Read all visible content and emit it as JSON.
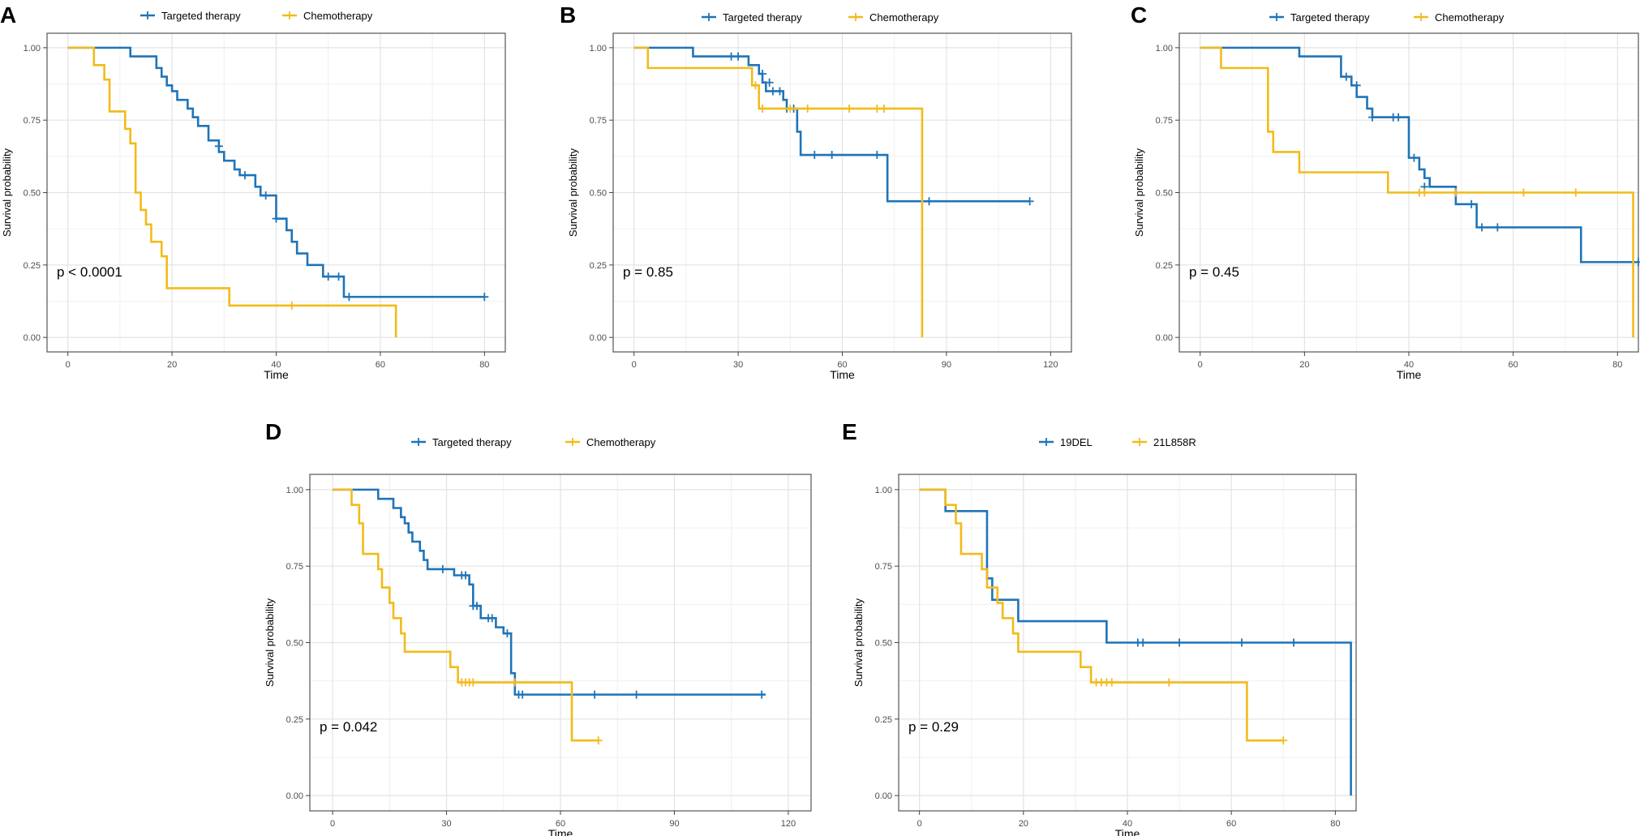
{
  "figure": {
    "axis_label_y": "Survival probability",
    "axis_label_x": "Time"
  },
  "chart_data": [
    {
      "panel": "A",
      "type": "line",
      "subtype": "kaplan-meier",
      "xlabel": "Time",
      "ylabel": "Survival probability",
      "xlim": [
        -4,
        84
      ],
      "ylim": [
        -0.05,
        1.05
      ],
      "xticks": [
        0,
        20,
        40,
        60,
        80
      ],
      "yticks": [
        0,
        0.25,
        0.5,
        0.75,
        1.0
      ],
      "ytick_labels": [
        "0.00",
        "0.25",
        "0.50",
        "0.75",
        "1.00"
      ],
      "annotation": "p < 0.0001",
      "legend": [
        "Targeted therapy",
        "Chemotherapy"
      ],
      "series": [
        {
          "name": "Targeted therapy",
          "color": "#1f74b8",
          "steps": [
            [
              0,
              1.0
            ],
            [
              12,
              0.97
            ],
            [
              17,
              0.93
            ],
            [
              18,
              0.9
            ],
            [
              19,
              0.87
            ],
            [
              20,
              0.85
            ],
            [
              21,
              0.82
            ],
            [
              23,
              0.79
            ],
            [
              24,
              0.76
            ],
            [
              25,
              0.73
            ],
            [
              27,
              0.68
            ],
            [
              29,
              0.64
            ],
            [
              30,
              0.61
            ],
            [
              32,
              0.58
            ],
            [
              33,
              0.56
            ],
            [
              36,
              0.52
            ],
            [
              37,
              0.49
            ],
            [
              40,
              0.46
            ],
            [
              40,
              0.41
            ],
            [
              42,
              0.37
            ],
            [
              43,
              0.33
            ],
            [
              44,
              0.29
            ],
            [
              46,
              0.25
            ],
            [
              49,
              0.21
            ],
            [
              53,
              0.18
            ],
            [
              53,
              0.14
            ],
            [
              80,
              0.14
            ]
          ],
          "censored": [
            [
              29,
              0.66
            ],
            [
              34,
              0.56
            ],
            [
              38,
              0.49
            ],
            [
              40,
              0.41
            ],
            [
              50,
              0.21
            ],
            [
              52,
              0.21
            ],
            [
              54,
              0.14
            ],
            [
              80,
              0.14
            ]
          ]
        },
        {
          "name": "Chemotherapy",
          "color": "#f2bb1a",
          "steps": [
            [
              0,
              1.0
            ],
            [
              5,
              0.94
            ],
            [
              7,
              0.89
            ],
            [
              8,
              0.78
            ],
            [
              11,
              0.72
            ],
            [
              12,
              0.67
            ],
            [
              13,
              0.5
            ],
            [
              14,
              0.44
            ],
            [
              15,
              0.39
            ],
            [
              16,
              0.33
            ],
            [
              18,
              0.28
            ],
            [
              19,
              0.17
            ],
            [
              31,
              0.11
            ],
            [
              63,
              0.11
            ],
            [
              63,
              0.0
            ]
          ],
          "censored": [
            [
              43,
              0.11
            ]
          ]
        }
      ]
    },
    {
      "panel": "B",
      "type": "line",
      "subtype": "kaplan-meier",
      "xlabel": "Time",
      "ylabel": "Survival probability",
      "xlim": [
        -6,
        126
      ],
      "ylim": [
        -0.05,
        1.05
      ],
      "xticks": [
        0,
        30,
        60,
        90,
        120
      ],
      "yticks": [
        0,
        0.25,
        0.5,
        0.75,
        1.0
      ],
      "ytick_labels": [
        "0.00",
        "0.25",
        "0.50",
        "0.75",
        "1.00"
      ],
      "annotation": "p = 0.85",
      "legend": [
        "Targeted therapy",
        "Chemotherapy"
      ],
      "series": [
        {
          "name": "Targeted therapy",
          "color": "#1f74b8",
          "steps": [
            [
              0,
              1.0
            ],
            [
              17,
              0.97
            ],
            [
              33,
              0.94
            ],
            [
              36,
              0.91
            ],
            [
              37,
              0.88
            ],
            [
              38,
              0.85
            ],
            [
              43,
              0.82
            ],
            [
              44,
              0.79
            ],
            [
              47,
              0.71
            ],
            [
              48,
              0.63
            ],
            [
              73,
              0.47
            ],
            [
              114,
              0.47
            ]
          ],
          "censored": [
            [
              28,
              0.97
            ],
            [
              30,
              0.97
            ],
            [
              37,
              0.91
            ],
            [
              39,
              0.88
            ],
            [
              40,
              0.85
            ],
            [
              42,
              0.85
            ],
            [
              44,
              0.79
            ],
            [
              46,
              0.79
            ],
            [
              52,
              0.63
            ],
            [
              57,
              0.63
            ],
            [
              70,
              0.63
            ],
            [
              83,
              0.47
            ],
            [
              85,
              0.47
            ],
            [
              114,
              0.47
            ]
          ]
        },
        {
          "name": "Chemotherapy",
          "color": "#f2bb1a",
          "steps": [
            [
              0,
              1.0
            ],
            [
              4,
              0.93
            ],
            [
              34,
              0.87
            ],
            [
              36,
              0.79
            ],
            [
              83,
              0.79
            ],
            [
              83,
              0.0
            ]
          ],
          "censored": [
            [
              35,
              0.87
            ],
            [
              37,
              0.79
            ],
            [
              45,
              0.79
            ],
            [
              50,
              0.79
            ],
            [
              62,
              0.79
            ],
            [
              70,
              0.79
            ],
            [
              72,
              0.79
            ]
          ]
        }
      ]
    },
    {
      "panel": "C",
      "type": "line",
      "subtype": "kaplan-meier",
      "xlabel": "Time",
      "ylabel": "Survival probability",
      "xlim": [
        -4,
        84
      ],
      "ylim": [
        -0.05,
        1.05
      ],
      "xticks": [
        0,
        20,
        40,
        60,
        80
      ],
      "yticks": [
        0,
        0.25,
        0.5,
        0.75,
        1.0
      ],
      "ytick_labels": [
        "0.00",
        "0.25",
        "0.50",
        "0.75",
        "1.00"
      ],
      "annotation": "p = 0.45",
      "legend": [
        "Targeted therapy",
        "Chemotherapy"
      ],
      "series": [
        {
          "name": "Targeted therapy",
          "color": "#1f74b8",
          "steps": [
            [
              0,
              1.0
            ],
            [
              19,
              0.97
            ],
            [
              27,
              0.9
            ],
            [
              29,
              0.87
            ],
            [
              30,
              0.83
            ],
            [
              32,
              0.79
            ],
            [
              33,
              0.76
            ],
            [
              40,
              0.69
            ],
            [
              40,
              0.62
            ],
            [
              42,
              0.58
            ],
            [
              43,
              0.55
            ],
            [
              44,
              0.52
            ],
            [
              49,
              0.46
            ],
            [
              52,
              0.46
            ],
            [
              53,
              0.38
            ],
            [
              73,
              0.26
            ],
            [
              84,
              0.26
            ]
          ],
          "censored": [
            [
              28,
              0.9
            ],
            [
              30,
              0.87
            ],
            [
              33,
              0.76
            ],
            [
              37,
              0.76
            ],
            [
              38,
              0.76
            ],
            [
              41,
              0.62
            ],
            [
              43,
              0.52
            ],
            [
              52,
              0.46
            ],
            [
              54,
              0.38
            ],
            [
              57,
              0.38
            ],
            [
              84,
              0.26
            ]
          ]
        },
        {
          "name": "Chemotherapy",
          "color": "#f2bb1a",
          "steps": [
            [
              0,
              1.0
            ],
            [
              4,
              0.93
            ],
            [
              13,
              0.71
            ],
            [
              14,
              0.64
            ],
            [
              19,
              0.57
            ],
            [
              36,
              0.5
            ],
            [
              83,
              0.5
            ],
            [
              83,
              0.0
            ]
          ],
          "censored": [
            [
              42,
              0.5
            ],
            [
              43,
              0.5
            ],
            [
              49,
              0.5
            ],
            [
              62,
              0.5
            ],
            [
              72,
              0.5
            ]
          ]
        }
      ]
    },
    {
      "panel": "D",
      "type": "line",
      "subtype": "kaplan-meier",
      "xlabel": "Time",
      "ylabel": "Survival probability",
      "xlim": [
        -6,
        126
      ],
      "ylim": [
        -0.05,
        1.05
      ],
      "xticks": [
        0,
        30,
        60,
        90,
        120
      ],
      "yticks": [
        0,
        0.25,
        0.5,
        0.75,
        1.0
      ],
      "ytick_labels": [
        "0.00",
        "0.25",
        "0.50",
        "0.75",
        "1.00"
      ],
      "annotation": "p = 0.042",
      "legend": [
        "Targeted therapy",
        "Chemotherapy"
      ],
      "series": [
        {
          "name": "Targeted therapy",
          "color": "#1f74b8",
          "steps": [
            [
              0,
              1.0
            ],
            [
              12,
              0.97
            ],
            [
              16,
              0.94
            ],
            [
              18,
              0.91
            ],
            [
              19,
              0.89
            ],
            [
              20,
              0.86
            ],
            [
              21,
              0.83
            ],
            [
              23,
              0.8
            ],
            [
              24,
              0.77
            ],
            [
              25,
              0.74
            ],
            [
              30,
              0.74
            ],
            [
              32,
              0.72
            ],
            [
              36,
              0.69
            ],
            [
              37,
              0.62
            ],
            [
              39,
              0.58
            ],
            [
              43,
              0.55
            ],
            [
              45,
              0.53
            ],
            [
              47,
              0.46
            ],
            [
              47,
              0.4
            ],
            [
              48,
              0.33
            ],
            [
              114,
              0.33
            ]
          ],
          "censored": [
            [
              29,
              0.74
            ],
            [
              34,
              0.72
            ],
            [
              35,
              0.72
            ],
            [
              37,
              0.62
            ],
            [
              38,
              0.62
            ],
            [
              41,
              0.58
            ],
            [
              42,
              0.58
            ],
            [
              46,
              0.53
            ],
            [
              49,
              0.33
            ],
            [
              50,
              0.33
            ],
            [
              69,
              0.33
            ],
            [
              80,
              0.33
            ],
            [
              113,
              0.33
            ]
          ]
        },
        {
          "name": "Chemotherapy",
          "color": "#f2bb1a",
          "steps": [
            [
              0,
              1.0
            ],
            [
              5,
              0.95
            ],
            [
              7,
              0.89
            ],
            [
              8,
              0.79
            ],
            [
              12,
              0.74
            ],
            [
              13,
              0.68
            ],
            [
              15,
              0.63
            ],
            [
              16,
              0.58
            ],
            [
              18,
              0.53
            ],
            [
              19,
              0.47
            ],
            [
              31,
              0.42
            ],
            [
              33,
              0.37
            ],
            [
              63,
              0.37
            ],
            [
              63,
              0.18
            ],
            [
              70,
              0.18
            ]
          ],
          "censored": [
            [
              34,
              0.37
            ],
            [
              35,
              0.37
            ],
            [
              36,
              0.37
            ],
            [
              37,
              0.37
            ],
            [
              48,
              0.37
            ],
            [
              70,
              0.18
            ]
          ]
        }
      ]
    },
    {
      "panel": "E",
      "type": "line",
      "subtype": "kaplan-meier",
      "xlabel": "Time",
      "ylabel": "Survival probability",
      "xlim": [
        -4,
        84
      ],
      "ylim": [
        -0.05,
        1.05
      ],
      "xticks": [
        0,
        20,
        40,
        60,
        80
      ],
      "yticks": [
        0,
        0.25,
        0.5,
        0.75,
        1.0
      ],
      "ytick_labels": [
        "0.00",
        "0.25",
        "0.50",
        "0.75",
        "1.00"
      ],
      "annotation": "p = 0.29",
      "legend": [
        "19DEL",
        "21L858R"
      ],
      "series": [
        {
          "name": "19DEL",
          "color": "#1f74b8",
          "steps": [
            [
              0,
              1.0
            ],
            [
              5,
              0.93
            ],
            [
              13,
              0.71
            ],
            [
              14,
              0.64
            ],
            [
              19,
              0.57
            ],
            [
              36,
              0.5
            ],
            [
              83,
              0.5
            ],
            [
              83,
              0.0
            ]
          ],
          "censored": [
            [
              42,
              0.5
            ],
            [
              43,
              0.5
            ],
            [
              50,
              0.5
            ],
            [
              62,
              0.5
            ],
            [
              72,
              0.5
            ]
          ]
        },
        {
          "name": "21L858R",
          "color": "#f2bb1a",
          "steps": [
            [
              0,
              1.0
            ],
            [
              5,
              0.95
            ],
            [
              7,
              0.89
            ],
            [
              8,
              0.79
            ],
            [
              12,
              0.74
            ],
            [
              13,
              0.68
            ],
            [
              15,
              0.63
            ],
            [
              16,
              0.58
            ],
            [
              18,
              0.53
            ],
            [
              19,
              0.47
            ],
            [
              31,
              0.42
            ],
            [
              33,
              0.37
            ],
            [
              63,
              0.37
            ],
            [
              63,
              0.18
            ],
            [
              70,
              0.18
            ]
          ],
          "censored": [
            [
              34,
              0.37
            ],
            [
              35,
              0.37
            ],
            [
              36,
              0.37
            ],
            [
              37,
              0.37
            ],
            [
              48,
              0.37
            ],
            [
              70,
              0.18
            ]
          ]
        }
      ]
    }
  ]
}
